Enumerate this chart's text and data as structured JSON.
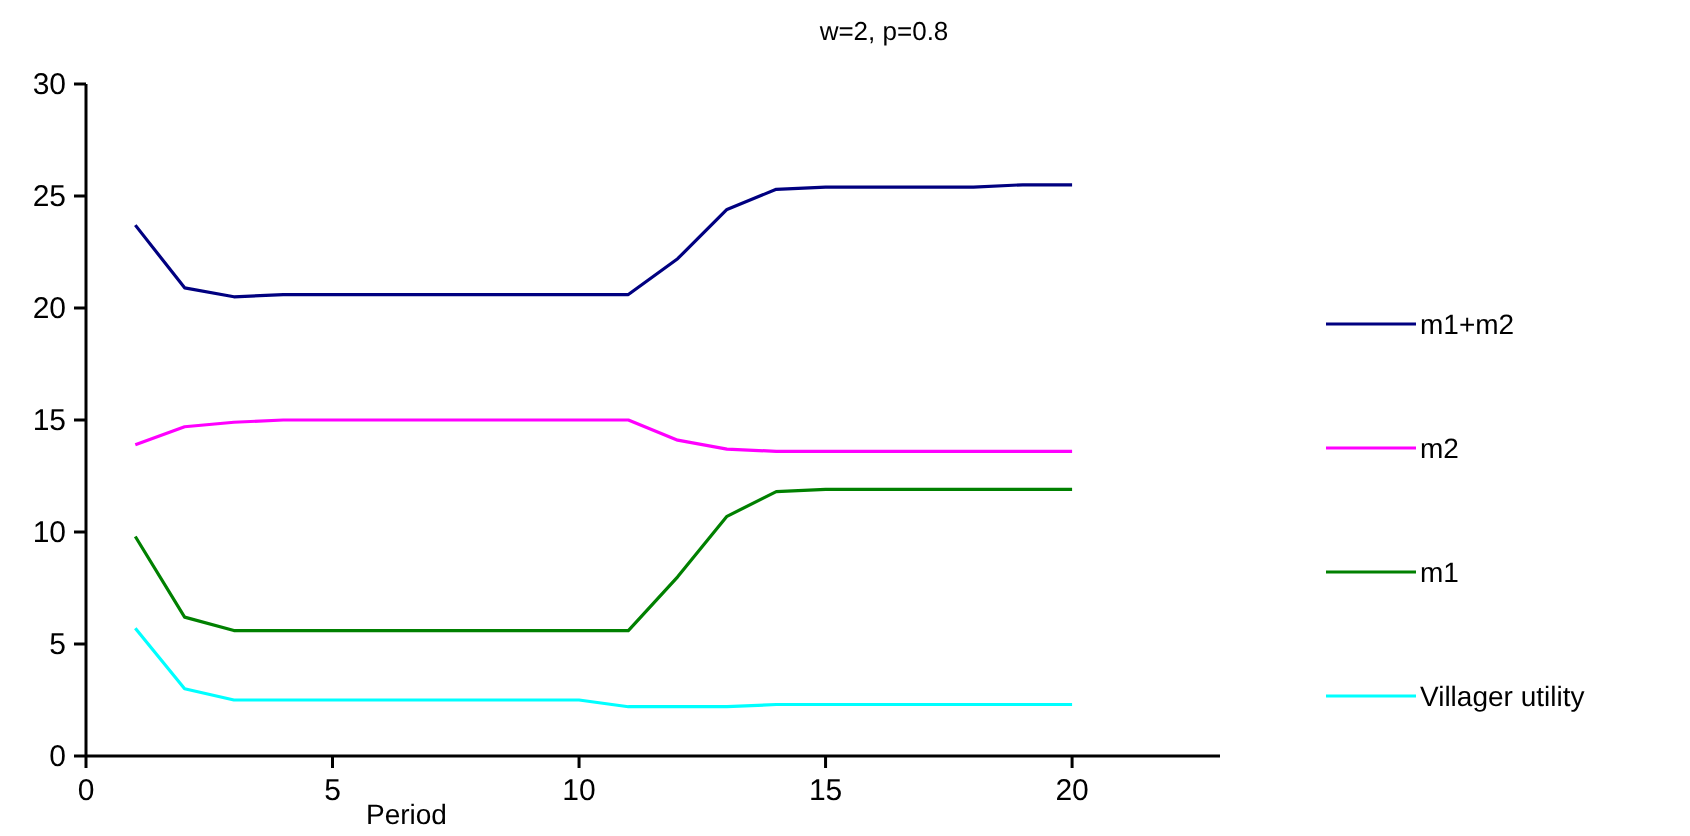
{
  "chart_data": {
    "type": "line",
    "title": "w=2, p=0.8",
    "xlabel": "Period",
    "x": [
      1,
      2,
      3,
      4,
      5,
      6,
      7,
      8,
      9,
      10,
      11,
      12,
      13,
      14,
      15,
      16,
      17,
      18,
      19,
      20
    ],
    "series": [
      {
        "name": "m1+m2",
        "color": "#000080",
        "values": [
          23.7,
          20.9,
          20.5,
          20.6,
          20.6,
          20.6,
          20.6,
          20.6,
          20.6,
          20.6,
          20.6,
          22.2,
          24.4,
          25.3,
          25.4,
          25.4,
          25.4,
          25.4,
          25.5,
          25.5
        ]
      },
      {
        "name": "m2",
        "color": "#ff00ff",
        "values": [
          13.9,
          14.7,
          14.9,
          15,
          15,
          15,
          15,
          15,
          15,
          15,
          15,
          14.1,
          13.7,
          13.6,
          13.6,
          13.6,
          13.6,
          13.6,
          13.6,
          13.6
        ]
      },
      {
        "name": "m1",
        "color": "#008000",
        "values": [
          9.8,
          6.2,
          5.6,
          5.6,
          5.6,
          5.6,
          5.6,
          5.6,
          5.6,
          5.6,
          5.6,
          8,
          10.7,
          11.8,
          11.9,
          11.9,
          11.9,
          11.9,
          11.9,
          11.9
        ]
      },
      {
        "name": "Villager utility",
        "color": "#00ffff",
        "values": [
          5.7,
          3,
          2.5,
          2.5,
          2.5,
          2.5,
          2.5,
          2.5,
          2.5,
          2.5,
          2.2,
          2.2,
          2.2,
          2.3,
          2.3,
          2.3,
          2.3,
          2.3,
          2.3,
          2.3
        ]
      }
    ],
    "xlim": [
      0,
      23
    ],
    "xticks": [
      0,
      5,
      10,
      15,
      20
    ],
    "ylim": [
      0,
      30
    ],
    "yticks": [
      0,
      5,
      10,
      15,
      20,
      25,
      30
    ],
    "grid": false,
    "legend": "right",
    "marker": "none",
    "line_style": "solid"
  }
}
